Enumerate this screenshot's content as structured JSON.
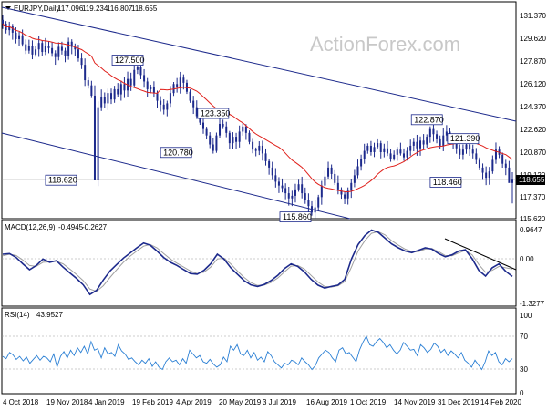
{
  "chart_data": [
    {
      "type": "candlestick",
      "title": "EURJPY,Daily",
      "ohlc": [
        "117.096",
        "119.234",
        "116.807",
        "118.655"
      ],
      "watermark": "ActionForex.com",
      "ylim": [
        115.62,
        131.37
      ],
      "yticks": [
        "131.370",
        "129.620",
        "127.870",
        "126.120",
        "124.370",
        "122.620",
        "120.870",
        "119.120",
        "117.370",
        "115.620"
      ],
      "yticks_values": [
        131.37,
        129.62,
        127.87,
        126.12,
        124.37,
        122.62,
        120.87,
        119.12,
        117.37,
        115.62
      ],
      "current_price_label": "118.655",
      "current_price": 118.655,
      "annotations": [
        {
          "text": "127.500",
          "x": 38,
          "y": 127.5
        },
        {
          "text": "123.350",
          "x": 64,
          "y": 123.35
        },
        {
          "text": "120.780",
          "x": 58,
          "y": 120.78
        },
        {
          "text": "118.620",
          "x": 23,
          "y": 118.62
        },
        {
          "text": "115.860",
          "x": 95,
          "y": 115.86
        },
        {
          "text": "122.870",
          "x": 130,
          "y": 122.87
        },
        {
          "text": "121.390",
          "x": 141,
          "y": 121.39
        },
        {
          "text": "118.460",
          "x": 141,
          "y": 118.46
        }
      ],
      "close": [
        130.8,
        130.3,
        130.6,
        130.1,
        129.6,
        129.9,
        129.2,
        128.7,
        129.1,
        128.4,
        128.8,
        129.3,
        128.6,
        129.1,
        128.9,
        128.5,
        128.2,
        129.0,
        128.7,
        128.3,
        129.4,
        129.0,
        128.8,
        128.1,
        127.6,
        126.4,
        126.0,
        125.2,
        118.6,
        124.3,
        125.1,
        124.6,
        125.4,
        124.9,
        125.7,
        125.3,
        126.1,
        125.6,
        126.5,
        126.0,
        127.2,
        127.4,
        126.8,
        126.3,
        125.7,
        125.9,
        125.4,
        124.8,
        124.5,
        124.1,
        124.6,
        125.4,
        126.1,
        125.9,
        126.6,
        126.2,
        125.5,
        124.8,
        124.3,
        123.6,
        123.1,
        122.6,
        122.1,
        121.4,
        120.9,
        122.1,
        123.0,
        122.8,
        122.3,
        121.5,
        122.0,
        121.6,
        122.4,
        122.8,
        122.3,
        121.6,
        121.0,
        120.9,
        121.3,
        120.7,
        120.1,
        119.6,
        119.0,
        118.5,
        118.2,
        118.0,
        117.6,
        117.2,
        117.4,
        117.9,
        118.3,
        117.6,
        117.1,
        116.6,
        116.1,
        116.5,
        117.3,
        118.2,
        118.9,
        119.6,
        119.1,
        118.4,
        117.9,
        117.5,
        117.2,
        117.8,
        118.4,
        119.0,
        119.7,
        120.3,
        120.9,
        121.3,
        120.8,
        121.2,
        121.5,
        120.8,
        121.1,
        120.7,
        120.3,
        120.6,
        121.0,
        120.7,
        120.4,
        120.9,
        121.3,
        121.6,
        121.1,
        121.7,
        121.4,
        122.0,
        122.6,
        122.2,
        121.8,
        121.3,
        122.1,
        122.4,
        121.9,
        121.5,
        121.1,
        120.6,
        121.0,
        121.4,
        121.0,
        120.7,
        120.2,
        119.6,
        119.2,
        118.8,
        119.3,
        120.2,
        121.0,
        120.6,
        119.9,
        119.6,
        118.4,
        118.65
      ],
      "ma_color": "#e0201b",
      "candle_color": "#1d2a8c",
      "channel_color": "#1d2a8c"
    },
    {
      "type": "line",
      "title": "MACD(12,26,9)",
      "values_text": [
        "-0.4945",
        "-0.2627"
      ],
      "ylim": [
        -1.3277,
        0.9647
      ],
      "yticks": [
        "0.9647",
        "0.00",
        "-1.3277"
      ],
      "yticks_values": [
        0.9647,
        0.0,
        -1.3277
      ],
      "series": [
        {
          "color": "#1d2a8c",
          "values": [
            0.2,
            0.22,
            0.1,
            -0.1,
            -0.28,
            -0.15,
            0.05,
            -0.05,
            0.0,
            -0.2,
            -0.38,
            -0.55,
            -0.75,
            -1.05,
            -0.92,
            -0.6,
            -0.32,
            -0.12,
            0.08,
            0.24,
            0.4,
            0.55,
            0.48,
            0.3,
            0.1,
            -0.05,
            -0.15,
            -0.28,
            -0.4,
            -0.42,
            -0.3,
            -0.1,
            0.2,
            0.05,
            -0.22,
            -0.42,
            -0.62,
            -0.75,
            -0.8,
            -0.74,
            -0.62,
            -0.46,
            -0.25,
            -0.1,
            -0.18,
            -0.35,
            -0.58,
            -0.76,
            -0.85,
            -0.8,
            -0.76,
            -0.58,
            0.05,
            0.5,
            0.78,
            0.95,
            0.88,
            0.7,
            0.52,
            0.4,
            0.3,
            0.25,
            0.32,
            0.4,
            0.36,
            0.22,
            0.12,
            0.18,
            0.3,
            0.34,
            0.06,
            -0.3,
            -0.48,
            -0.22,
            -0.1,
            -0.33,
            -0.49
          ]
        },
        {
          "color": "#a0a0a0",
          "values": [
            0.15,
            0.2,
            0.16,
            0.02,
            -0.15,
            -0.18,
            -0.05,
            -0.04,
            -0.02,
            -0.1,
            -0.26,
            -0.43,
            -0.62,
            -0.88,
            -0.95,
            -0.78,
            -0.52,
            -0.28,
            -0.05,
            0.14,
            0.3,
            0.45,
            0.5,
            0.4,
            0.22,
            0.05,
            -0.08,
            -0.2,
            -0.32,
            -0.4,
            -0.36,
            -0.2,
            0.05,
            0.08,
            -0.1,
            -0.32,
            -0.52,
            -0.68,
            -0.77,
            -0.76,
            -0.68,
            -0.54,
            -0.35,
            -0.17,
            -0.15,
            -0.26,
            -0.46,
            -0.66,
            -0.8,
            -0.82,
            -0.78,
            -0.65,
            -0.2,
            0.3,
            0.62,
            0.85,
            0.9,
            0.8,
            0.62,
            0.48,
            0.36,
            0.28,
            0.28,
            0.36,
            0.38,
            0.28,
            0.16,
            0.15,
            0.24,
            0.32,
            0.18,
            -0.12,
            -0.36,
            -0.3,
            -0.18,
            -0.22,
            -0.26
          ]
        }
      ],
      "trendline_color": "#000000"
    },
    {
      "type": "line",
      "title": "RSI(14)",
      "values_text": [
        "43.9527"
      ],
      "ylim": [
        0,
        100
      ],
      "yticks": [
        "100",
        "70",
        "30",
        "0"
      ],
      "yticks_values": [
        100,
        70,
        30,
        0
      ],
      "levels": [
        70,
        30
      ],
      "series": [
        {
          "color": "#2a7fd4",
          "values": [
            47,
            44,
            52,
            49,
            43,
            47,
            41,
            46,
            38,
            43,
            48,
            42,
            47,
            45,
            40,
            50,
            33,
            47,
            53,
            45,
            55,
            48,
            58,
            52,
            60,
            50,
            66,
            55,
            57,
            45,
            58,
            50,
            52,
            47,
            62,
            54,
            50,
            43,
            45,
            40,
            36,
            42,
            38,
            44,
            34,
            40,
            33,
            30,
            40,
            45,
            40,
            42,
            36,
            44,
            38,
            55,
            50,
            45,
            48,
            40,
            38,
            43,
            37,
            33,
            36,
            46,
            40,
            60,
            55,
            62,
            50,
            48,
            55,
            45,
            52,
            42,
            46,
            40,
            53,
            48,
            40,
            36,
            32,
            38,
            36,
            42,
            40,
            36,
            45,
            40,
            36,
            30,
            35,
            45,
            50,
            55,
            52,
            45,
            40,
            55,
            58,
            50,
            52,
            46,
            40,
            55,
            65,
            73,
            62,
            60,
            66,
            70,
            65,
            58,
            62,
            55,
            50,
            55,
            65,
            60,
            55,
            56,
            48,
            62,
            58,
            52,
            56,
            64,
            60,
            52,
            56,
            48,
            54,
            50,
            45,
            52,
            42,
            38,
            33,
            42,
            36,
            30,
            40,
            54,
            48,
            52,
            40,
            36,
            44,
            40,
            44
          ]
        }
      ]
    }
  ],
  "x_axis": {
    "labels": [
      "4 Oct 2018",
      "19 Nov 2018",
      "4 Jan 2019",
      "19 Feb 2019",
      "4 Apr 2019",
      "20 May 2019",
      "3 Jul 2019",
      "16 Aug 2019",
      "1 Oct 2019",
      "14 Nov 2019",
      "31 Dec 2019",
      "14 Feb 2020"
    ]
  }
}
